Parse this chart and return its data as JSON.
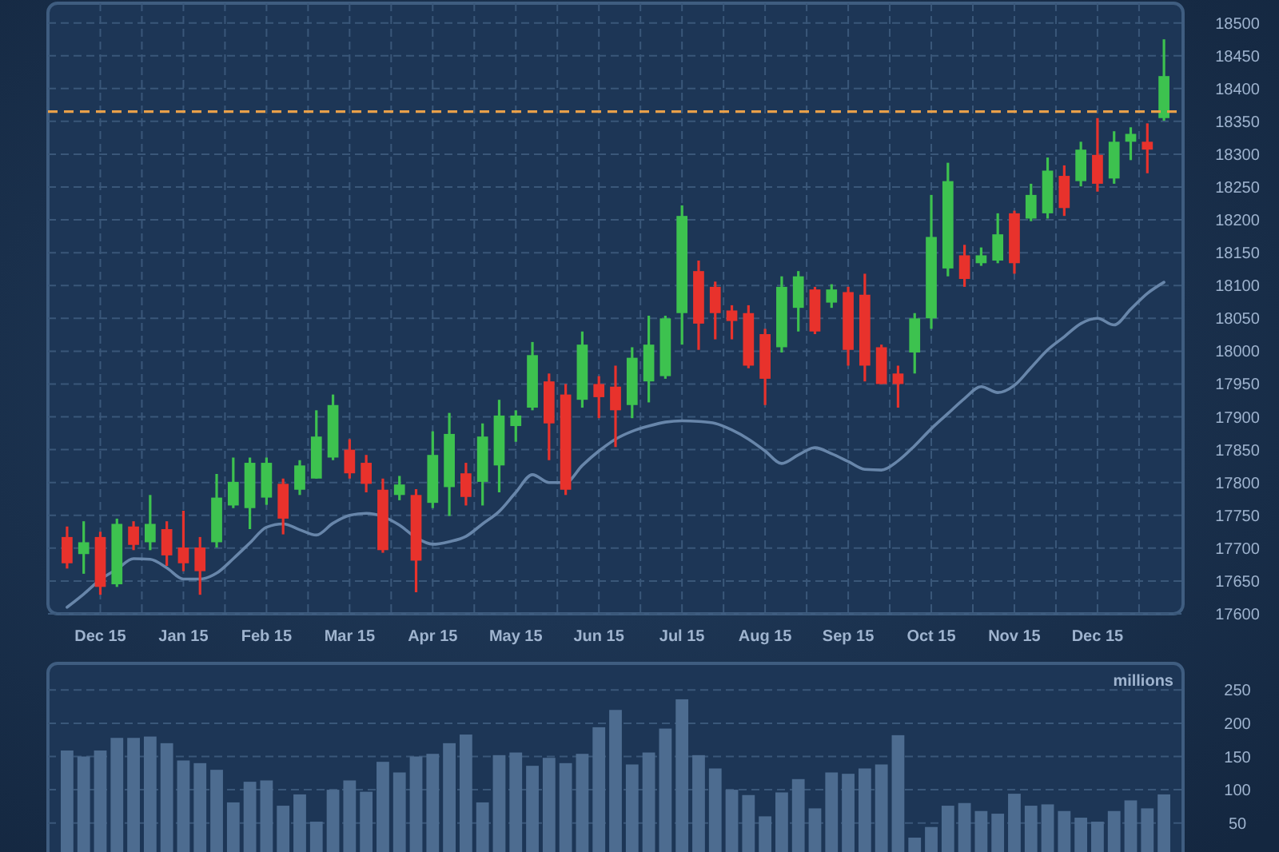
{
  "chart_data": [
    {
      "type": "candlestick",
      "categories": [
        null,
        null,
        "Dec 15",
        null,
        null,
        null,
        null,
        "Jan 15",
        null,
        null,
        null,
        null,
        "Feb 15",
        null,
        null,
        null,
        null,
        "Mar 15",
        null,
        null,
        null,
        null,
        "Apr 15",
        null,
        null,
        null,
        null,
        "May 15",
        null,
        null,
        null,
        null,
        "Jun 15",
        null,
        null,
        null,
        null,
        "Jul 15",
        null,
        null,
        null,
        null,
        "Aug 15",
        null,
        null,
        null,
        null,
        "Sep 15",
        null,
        null,
        null,
        null,
        "Oct 15",
        null,
        null,
        null,
        null,
        "Nov 15",
        null,
        null,
        null,
        null,
        "Dec 15",
        null,
        null,
        null,
        null
      ],
      "ohlc": [
        [
          17717,
          17733,
          17669,
          17677
        ],
        [
          17691,
          17741,
          17661,
          17709
        ],
        [
          17717,
          17725,
          17629,
          17641
        ],
        [
          17645,
          17745,
          17641,
          17737
        ],
        [
          17733,
          17741,
          17697,
          17705
        ],
        [
          17709,
          17781,
          17697,
          17737
        ],
        [
          17729,
          17741,
          17673,
          17689
        ],
        [
          17701,
          17757,
          17665,
          17677
        ],
        [
          17701,
          17717,
          17629,
          17665
        ],
        [
          17709,
          17813,
          17701,
          17777
        ],
        [
          17765,
          17838,
          17761,
          17801
        ],
        [
          17761,
          17838,
          17729,
          17830
        ],
        [
          17777,
          17838,
          17766,
          17830
        ],
        [
          17798,
          17806,
          17721,
          17745
        ],
        [
          17789,
          17834,
          17781,
          17826
        ],
        [
          17806,
          17910,
          17806,
          17870
        ],
        [
          17838,
          17934,
          17834,
          17918
        ],
        [
          17850,
          17866,
          17806,
          17814
        ],
        [
          17830,
          17842,
          17785,
          17798
        ],
        [
          17789,
          17806,
          17693,
          17697
        ],
        [
          17781,
          17810,
          17773,
          17797
        ],
        [
          17781,
          17790,
          17633,
          17681
        ],
        [
          17769,
          17878,
          17761,
          17842
        ],
        [
          17793,
          17906,
          17749,
          17874
        ],
        [
          17814,
          17830,
          17765,
          17778
        ],
        [
          17801,
          17890,
          17765,
          17870
        ],
        [
          17826,
          17926,
          17785,
          17902
        ],
        [
          17886,
          17910,
          17862,
          17902
        ],
        [
          17914,
          18014,
          17910,
          17994
        ],
        [
          17954,
          17966,
          17834,
          17890
        ],
        [
          17934,
          17950,
          17781,
          17789
        ],
        [
          17926,
          18030,
          17914,
          18010
        ],
        [
          17950,
          17962,
          17898,
          17930
        ],
        [
          17946,
          17978,
          17854,
          17910
        ],
        [
          17918,
          18006,
          17898,
          17990
        ],
        [
          17954,
          18054,
          17922,
          18010
        ],
        [
          17962,
          18054,
          17958,
          18050
        ],
        [
          18058,
          18222,
          18010,
          18206
        ],
        [
          18122,
          18138,
          18002,
          18042
        ],
        [
          18098,
          18106,
          18018,
          18058
        ],
        [
          18062,
          18070,
          18018,
          18046
        ],
        [
          18058,
          18070,
          17974,
          17978
        ],
        [
          18026,
          18034,
          17918,
          17958
        ],
        [
          18006,
          18114,
          17998,
          18098
        ],
        [
          18066,
          18122,
          18030,
          18114
        ],
        [
          18094,
          18098,
          18026,
          18030
        ],
        [
          18074,
          18102,
          18066,
          18094
        ],
        [
          18090,
          18098,
          17978,
          18002
        ],
        [
          18086,
          18118,
          17954,
          17978
        ],
        [
          18006,
          18010,
          17950,
          17950
        ],
        [
          17966,
          17978,
          17914,
          17950
        ],
        [
          17998,
          18058,
          17966,
          18050
        ],
        [
          18050,
          18238,
          18034,
          18174
        ],
        [
          18126,
          18287,
          18114,
          18259
        ],
        [
          18146,
          18162,
          18098,
          18110
        ],
        [
          18134,
          18158,
          18130,
          18146
        ],
        [
          18138,
          18210,
          18134,
          18178
        ],
        [
          18210,
          18214,
          18118,
          18134
        ],
        [
          18202,
          18255,
          18198,
          18238
        ],
        [
          18210,
          18295,
          18202,
          18275
        ],
        [
          18267,
          18283,
          18206,
          18218
        ],
        [
          18259,
          18319,
          18251,
          18307
        ],
        [
          18299,
          18355,
          18243,
          18255
        ],
        [
          18263,
          18335,
          18255,
          18319
        ],
        [
          18319,
          18341,
          18291,
          18331
        ],
        [
          18319,
          18347,
          18271,
          18307
        ],
        [
          18355,
          18475,
          18351,
          18419
        ]
      ],
      "colors": [
        "#e8322c",
        "#3dc24f",
        "#e8322c",
        "#3dc24f",
        "#e8322c",
        "#3dc24f",
        "#e8322c",
        "#e8322c",
        "#e8322c",
        "#3dc24f",
        "#3dc24f",
        "#3dc24f",
        "#3dc24f",
        "#e8322c",
        "#3dc24f",
        "#3dc24f",
        "#3dc24f",
        "#e8322c",
        "#e8322c",
        "#e8322c",
        "#3dc24f",
        "#e8322c",
        "#3dc24f",
        "#3dc24f",
        "#e8322c",
        "#3dc24f",
        "#3dc24f",
        "#3dc24f",
        "#3dc24f",
        "#e8322c",
        "#e8322c",
        "#3dc24f",
        "#e8322c",
        "#e8322c",
        "#3dc24f",
        "#3dc24f",
        "#3dc24f",
        "#3dc24f",
        "#e8322c",
        "#e8322c",
        "#e8322c",
        "#e8322c",
        "#e8322c",
        "#3dc24f",
        "#3dc24f",
        "#e8322c",
        "#3dc24f",
        "#e8322c",
        "#e8322c",
        "#e8322c",
        "#e8322c",
        "#3dc24f",
        "#3dc24f",
        "#3dc24f",
        "#e8322c",
        "#3dc24f",
        "#3dc24f",
        "#e8322c",
        "#3dc24f",
        "#3dc24f",
        "#e8322c",
        "#3dc24f",
        "#e8322c",
        "#3dc24f",
        "#3dc24f",
        "#e8322c",
        "#3dc24f"
      ],
      "series": [
        {
          "type": "line",
          "color": "#6886aa",
          "values": [
            17610,
            17630,
            17652,
            17668,
            17684,
            17683,
            17670,
            17653,
            17653,
            17662,
            17684,
            17708,
            17732,
            17737,
            17728,
            17720,
            17738,
            17750,
            17753,
            17748,
            17735,
            17716,
            17706,
            17710,
            17718,
            17737,
            17756,
            17785,
            17812,
            17800,
            17800,
            17826,
            17848,
            17866,
            17878,
            17886,
            17892,
            17894,
            17893,
            17890,
            17880,
            17866,
            17848,
            17829,
            17842,
            17853,
            17844,
            17832,
            17820,
            17819,
            17833,
            17856,
            17882,
            17905,
            17928,
            17946,
            17937,
            17948,
            17975,
            18002,
            18022,
            18042,
            18050,
            18040,
            18064,
            18088,
            18105
          ]
        }
      ],
      "ref_lines": [
        {
          "axis": "y",
          "value": 18365,
          "color": "#e8a04a",
          "line_style": "dashed"
        }
      ],
      "ylim": [
        17600,
        18530
      ],
      "yticks": [
        17600,
        17650,
        17700,
        17750,
        17800,
        17850,
        17900,
        17950,
        18000,
        18050,
        18100,
        18150,
        18200,
        18250,
        18300,
        18350,
        18400,
        18450,
        18500
      ],
      "grid": true
    },
    {
      "type": "bar",
      "ylabel": "millions",
      "color": "#4d6c90",
      "categories": [
        null,
        null,
        null,
        null,
        null,
        null,
        null,
        null,
        null,
        null,
        null,
        null,
        null,
        null,
        null,
        null,
        null,
        null,
        null,
        null,
        null,
        null,
        null,
        null,
        null,
        null,
        null,
        null,
        null,
        null,
        null,
        null,
        null,
        null,
        null,
        null,
        null,
        null,
        null,
        null,
        null,
        null,
        null,
        null,
        null,
        null,
        null,
        null,
        null,
        null,
        null,
        null,
        null,
        null,
        null,
        null,
        null,
        null,
        null,
        null,
        null,
        null,
        null,
        null,
        null,
        null,
        null
      ],
      "values": [
        159,
        150,
        159,
        178,
        178,
        180,
        170,
        144,
        140,
        130,
        81,
        112,
        114,
        76,
        93,
        52,
        100,
        114,
        97,
        142,
        126,
        150,
        154,
        170,
        183,
        81,
        152,
        156,
        136,
        148,
        140,
        154,
        194,
        220,
        138,
        156,
        192,
        236,
        152,
        132,
        100,
        92,
        60,
        96,
        116,
        72,
        126,
        124,
        132,
        138,
        182,
        28,
        44,
        76,
        80,
        68,
        64,
        94,
        76,
        78,
        68,
        58,
        52,
        68,
        84,
        72,
        93
      ],
      "ylim": [
        10,
        290
      ],
      "yticks": [
        50,
        100,
        150,
        200,
        250
      ],
      "grid": "y",
      "tick_labels": "y"
    }
  ]
}
